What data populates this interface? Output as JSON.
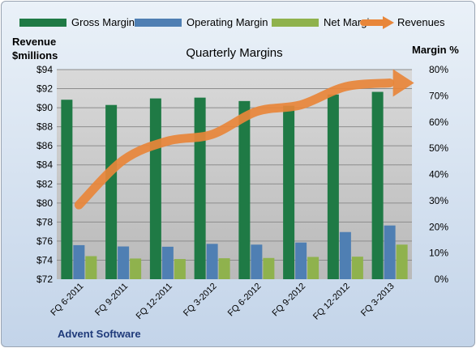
{
  "chart_data": {
    "type": "bar",
    "title": "Quarterly Margins",
    "caption": "Advent Software",
    "categories": [
      "FQ 6-2011",
      "FQ 9-2011",
      "FQ 12-2011",
      "FQ 3-2012",
      "FQ 6-2012",
      "FQ 9-2012",
      "FQ 12-2012",
      "FQ 3-2013"
    ],
    "y_left": {
      "label_line1": "Revenue",
      "label_line2": "$millions",
      "ylim": [
        72,
        94
      ],
      "ticks": [
        "$72",
        "$74",
        "$76",
        "$78",
        "$80",
        "$82",
        "$84",
        "$86",
        "$88",
        "$90",
        "$92",
        "$94"
      ]
    },
    "y_right": {
      "label": "Margin %",
      "ylim": [
        0,
        80
      ],
      "ticks": [
        "0%",
        "10%",
        "20%",
        "30%",
        "40%",
        "50%",
        "60%",
        "70%",
        "80%"
      ]
    },
    "grid": true,
    "legend_position": "top",
    "series": [
      {
        "name": "Gross Margin",
        "type": "bar",
        "axis": "right",
        "color": "#1f7a45",
        "values": [
          68.5,
          66.5,
          69.0,
          69.3,
          68.0,
          66.2,
          70.5,
          71.5
        ]
      },
      {
        "name": "Operating Margin",
        "type": "bar",
        "axis": "right",
        "color": "#4f7fb3",
        "values": [
          13.0,
          12.5,
          12.4,
          13.5,
          13.2,
          14.0,
          18.0,
          20.5
        ]
      },
      {
        "name": "Net Margin",
        "type": "bar",
        "axis": "right",
        "color": "#8fb24d",
        "values": [
          8.8,
          7.9,
          7.7,
          8.0,
          8.1,
          8.5,
          8.6,
          13.2
        ]
      },
      {
        "name": "Revenues",
        "type": "line",
        "axis": "left",
        "color": "#e8863a",
        "values": [
          79.8,
          84.5,
          86.5,
          87.2,
          89.6,
          90.3,
          92.2,
          92.6
        ]
      }
    ]
  }
}
